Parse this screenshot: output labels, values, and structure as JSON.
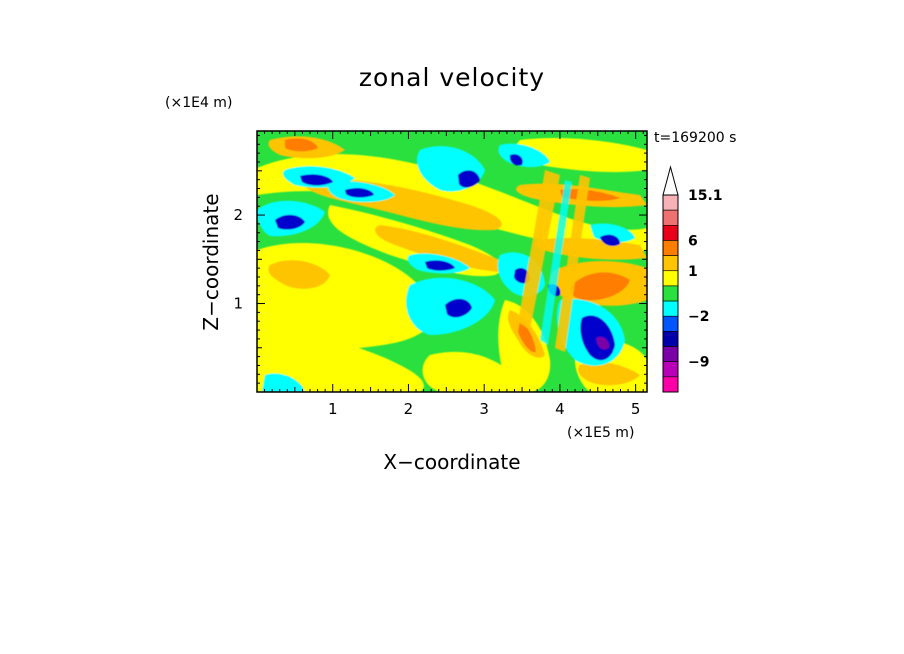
{
  "chart_data": {
    "type": "heatmap",
    "title": "zonal velocity",
    "xlabel": "X−coordinate",
    "ylabel": "Z−coordinate",
    "x_unit": "(×1E5 m)",
    "y_unit": "(×1E4 m)",
    "time_label": "t=169200 s",
    "xlim": [
      0,
      5.15
    ],
    "ylim": [
      0,
      2.95
    ],
    "x_ticks": [
      "1",
      "2",
      "3",
      "4",
      "5"
    ],
    "y_ticks": [
      "1",
      "2"
    ],
    "grid": false,
    "legend": "right",
    "colorbar": {
      "labels": [
        "15.1",
        "6",
        "1",
        "−2",
        "−9"
      ],
      "levels": [
        {
          "max": 15.1,
          "color": "#f6b2b6"
        },
        {
          "max": 12,
          "color": "#ee7070"
        },
        {
          "max": 9,
          "color": "#e8001a"
        },
        {
          "max": 6,
          "color": "#ff7d00"
        },
        {
          "max": 3,
          "color": "#ffc400"
        },
        {
          "max": 1,
          "color": "#ffff00"
        },
        {
          "max": 0,
          "color": "#29e03f"
        },
        {
          "max": -1,
          "color": "#00ffff"
        },
        {
          "max": -2,
          "color": "#0055ff"
        },
        {
          "max": -5,
          "color": "#0000aa"
        },
        {
          "max": -7,
          "color": "#7a00a8"
        },
        {
          "max": -9,
          "color": "#b800b8"
        },
        {
          "max": -12,
          "color": "#ff00a8"
        }
      ]
    }
  }
}
